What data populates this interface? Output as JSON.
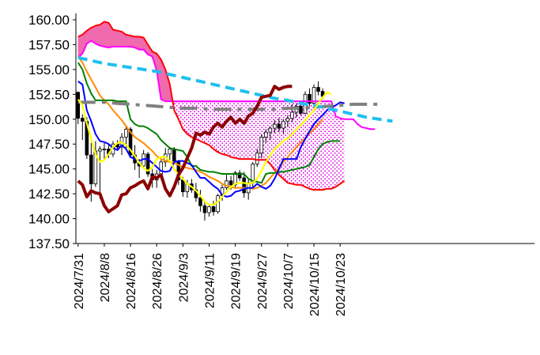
{
  "chart_data": {
    "type": "line",
    "subtype": "ichimoku-candlestick",
    "title": "",
    "xlabel": "",
    "ylabel": "",
    "ylim": [
      137.5,
      160.0
    ],
    "grid": false,
    "legend": "none",
    "y_ticks": [
      "137.50",
      "140.00",
      "142.50",
      "145.00",
      "147.50",
      "150.00",
      "152.50",
      "155.00",
      "157.50",
      "160.00"
    ],
    "x_tick_labels": [
      "2024/7/31",
      "2024/8/8",
      "2024/8/16",
      "2024/8/26",
      "2024/9/3",
      "2024/9/11",
      "2024/9/19",
      "2024/9/27",
      "2024/10/7",
      "2024/10/15",
      "2024/10/23"
    ],
    "x_tick_index": [
      0,
      6,
      12,
      18,
      24,
      30,
      36,
      42,
      48,
      54,
      60
    ],
    "n_points": 105,
    "candles": [
      [
        152.7,
        152.8,
        149.5,
        150.1
      ],
      [
        150.1,
        150.5,
        147.9,
        149.8
      ],
      [
        149.8,
        150.2,
        146.0,
        146.4
      ],
      [
        146.4,
        147.6,
        141.7,
        143.5
      ],
      [
        143.5,
        147.8,
        143.2,
        146.8
      ],
      [
        146.8,
        147.3,
        142.0,
        147.0
      ],
      [
        147.0,
        147.6,
        145.9,
        147.0
      ],
      [
        147.0,
        147.4,
        146.1,
        146.5
      ],
      [
        146.5,
        147.8,
        146.2,
        147.5
      ],
      [
        147.5,
        147.9,
        146.9,
        147.2
      ],
      [
        147.2,
        148.6,
        146.4,
        148.2
      ],
      [
        148.2,
        149.4,
        146.9,
        149.0
      ],
      [
        149.0,
        149.2,
        146.1,
        146.4
      ],
      [
        146.4,
        147.4,
        144.9,
        145.6
      ],
      [
        145.6,
        146.0,
        144.1,
        145.3
      ],
      [
        145.3,
        146.9,
        145.0,
        146.5
      ],
      [
        146.5,
        146.7,
        144.2,
        144.5
      ],
      [
        144.5,
        145.0,
        143.1,
        143.9
      ],
      [
        143.9,
        144.9,
        143.1,
        144.5
      ],
      [
        144.5,
        145.9,
        143.9,
        145.7
      ],
      [
        145.7,
        147.1,
        145.2,
        146.5
      ],
      [
        146.5,
        147.2,
        145.6,
        147.0
      ],
      [
        147.0,
        147.2,
        145.6,
        145.8
      ],
      [
        145.8,
        145.9,
        143.4,
        143.9
      ],
      [
        143.9,
        144.2,
        142.2,
        142.7
      ],
      [
        142.7,
        143.9,
        142.1,
        143.5
      ],
      [
        143.5,
        144.0,
        142.6,
        142.9
      ],
      [
        142.9,
        143.6,
        141.7,
        142.1
      ],
      [
        142.1,
        142.9,
        140.7,
        141.3
      ],
      [
        141.3,
        141.8,
        139.8,
        140.6
      ],
      [
        140.6,
        141.4,
        140.2,
        141.2
      ],
      [
        141.2,
        141.8,
        140.3,
        140.7
      ],
      [
        140.7,
        142.5,
        140.5,
        142.3
      ],
      [
        142.3,
        143.4,
        141.8,
        143.1
      ],
      [
        143.1,
        144.4,
        142.9,
        143.8
      ],
      [
        143.8,
        144.3,
        142.9,
        143.4
      ],
      [
        143.4,
        144.8,
        143.1,
        144.6
      ],
      [
        144.6,
        144.9,
        143.8,
        144.1
      ],
      [
        144.1,
        144.7,
        142.1,
        142.6
      ],
      [
        142.6,
        144.0,
        141.9,
        143.6
      ],
      [
        143.6,
        145.7,
        143.2,
        145.5
      ],
      [
        145.5,
        147.0,
        145.2,
        146.6
      ],
      [
        146.6,
        148.5,
        146.1,
        148.2
      ],
      [
        148.2,
        149.0,
        147.6,
        148.7
      ],
      [
        148.7,
        149.3,
        147.9,
        149.1
      ],
      [
        149.1,
        149.9,
        148.6,
        149.5
      ],
      [
        149.5,
        150.1,
        148.7,
        149.1
      ],
      [
        149.1,
        150.0,
        148.5,
        149.8
      ],
      [
        149.8,
        150.4,
        149.2,
        150.1
      ],
      [
        150.1,
        151.5,
        149.7,
        150.7
      ],
      [
        150.7,
        151.6,
        150.2,
        151.3
      ],
      [
        151.3,
        151.7,
        150.4,
        150.6
      ],
      [
        150.6,
        152.8,
        150.5,
        152.5
      ],
      [
        152.5,
        153.1,
        151.3,
        151.6
      ],
      [
        151.6,
        153.5,
        151.2,
        153.2
      ],
      [
        153.2,
        153.8,
        152.4,
        152.8
      ],
      [
        152.8,
        153.1,
        152.0,
        152.3
      ]
    ],
    "series": [
      {
        "role": "tenkan",
        "color": "#0000ff",
        "values": [
          153.8,
          153.5,
          150.9,
          149.8,
          148.5,
          147.8,
          147.7,
          147.5,
          147.1,
          146.9,
          147.4,
          147.0,
          146.2,
          146.0,
          145.8,
          146.0,
          146.0,
          145.6,
          145.2,
          144.8,
          144.7,
          144.8,
          145.7,
          145.8,
          145.8,
          145.6,
          145.4,
          144.7,
          144.1,
          144.1,
          143.7,
          143.3,
          143.0,
          142.4,
          142.2,
          142.3,
          142.7,
          142.8,
          143.0,
          143.1,
          143.1,
          143.5,
          143.2,
          143.0,
          143.3,
          144.0,
          145.0,
          146.0,
          146.0,
          146.0,
          146.0,
          147.2,
          148.0,
          148.8,
          149.5,
          150.0,
          150.4,
          150.9,
          151.2,
          151.4,
          151.7,
          151.6
        ]
      },
      {
        "role": "kijun",
        "color": "#008000",
        "values": [
          155.7,
          155.0,
          153.6,
          152.6,
          151.9,
          151.9,
          151.9,
          151.9,
          151.9,
          151.8,
          151.8,
          151.8,
          150.0,
          149.5,
          149.3,
          149.3,
          149.1,
          148.8,
          148.5,
          147.9,
          147.5,
          147.1,
          147.0,
          146.9,
          146.8,
          146.2,
          145.3,
          145.3,
          144.9,
          144.8,
          144.7,
          144.7,
          144.6,
          144.5,
          144.5,
          144.5,
          144.5,
          144.5,
          144.5,
          144.0,
          143.8,
          143.7,
          143.6,
          144.5,
          144.6,
          144.6,
          144.7,
          144.7,
          144.8,
          144.9,
          145.0,
          145.1,
          145.2,
          145.4,
          146.2,
          147.0,
          147.5,
          147.7,
          147.8,
          147.8,
          147.8
        ]
      },
      {
        "role": "chikou",
        "color": "#8b0000",
        "values": [
          143.8,
          143.4,
          142.2,
          142.8,
          142.6,
          142.5,
          141.3,
          140.7,
          141.0,
          141.3,
          142.4,
          142.5,
          143.1,
          143.3,
          143.6,
          143.8,
          143.0,
          144.2,
          144.1,
          144.4,
          143.0,
          142.3,
          143.2,
          144.4,
          145.1,
          146.1,
          147.1,
          148.6,
          148.4,
          148.7,
          148.5,
          149.2,
          149.6,
          149.2,
          149.8,
          150.2,
          149.6,
          150.0,
          149.6,
          150.3,
          150.6,
          151.3,
          152.2,
          152.3,
          152.4,
          153.3,
          153.0,
          153.2,
          153.3,
          153.3
        ]
      },
      {
        "role": "avg-orange",
        "color": "#ff8c00",
        "values": [
          156.3,
          155.7,
          154.8,
          154.0,
          153.2,
          152.4,
          151.9,
          151.5,
          150.9,
          150.4,
          149.9,
          149.3,
          148.7,
          148.2,
          147.9,
          147.6,
          147.2,
          146.8,
          146.3,
          146.0,
          145.8,
          145.7,
          145.6,
          145.4,
          145.2,
          145.1,
          145.0,
          144.9,
          144.7,
          144.5,
          144.2,
          144.0,
          143.8,
          143.5,
          143.3,
          143.2,
          143.1,
          143.1,
          143.1,
          143.1,
          143.0,
          143.1,
          143.3,
          143.6,
          144.1,
          144.6,
          145.1,
          145.7,
          146.2,
          146.7,
          147.2,
          147.7,
          148.1,
          148.6,
          149.0,
          149.5,
          150.0
        ]
      },
      {
        "role": "avg-yellow",
        "color": "#ffff00",
        "values": [
          152.0,
          151.4,
          149.6,
          148.0,
          146.5,
          145.7,
          145.9,
          146.5,
          147.2,
          147.6,
          147.7,
          147.4,
          146.9,
          146.3,
          145.6,
          145.1,
          144.8,
          145.2,
          146.0,
          146.2,
          146.2,
          145.8,
          145.0,
          144.4,
          144.0,
          143.5,
          143.2,
          142.8,
          142.3,
          141.7,
          141.4,
          141.4,
          141.7,
          142.2,
          142.7,
          143.2,
          143.5,
          143.6,
          143.6,
          143.5,
          143.6,
          144.0,
          144.8,
          145.7,
          146.4,
          147.0,
          147.4,
          147.8,
          148.1,
          148.5,
          149.0,
          149.4,
          149.9,
          150.4,
          150.9,
          151.6,
          152.2,
          152.7,
          152.5
        ]
      },
      {
        "role": "avg-cyan-dashed",
        "color": "#1fbfef",
        "values": [
          156.2,
          155.9,
          155.6,
          155.4,
          155.2,
          155.0,
          154.8,
          154.5,
          154.2,
          153.9,
          153.6,
          153.3,
          153.0,
          152.7,
          152.4,
          152.1,
          151.9,
          151.6,
          151.4,
          151.1,
          150.8,
          150.5,
          150.2,
          150.0,
          149.8
        ]
      },
      {
        "role": "avg-gray-dashdot",
        "color": "#808080",
        "values": [
          151.7,
          151.7,
          151.7,
          151.6,
          151.5,
          151.4,
          151.3,
          151.2,
          151.1,
          151.1,
          151.0,
          151.0,
          151.0,
          151.0,
          151.0,
          151.0,
          151.1,
          151.1,
          151.2,
          151.3,
          151.4,
          151.5,
          151.5,
          151.5
        ]
      },
      {
        "role": "senkou-a",
        "color": "#ff00ff",
        "values": [
          156.2,
          156.6,
          157.6,
          157.9,
          157.6,
          157.4,
          157.3,
          157.2,
          157.3,
          157.3,
          157.3,
          157.3,
          157.3,
          157.2,
          157.0,
          157.0,
          156.5,
          156.3,
          154.9,
          152.0,
          151.8,
          151.8,
          151.8,
          151.8,
          151.8,
          151.8,
          151.8,
          151.8,
          151.8,
          151.8,
          151.8,
          151.8,
          151.8,
          151.8,
          151.8,
          151.8,
          151.8,
          151.8,
          151.8,
          151.8,
          151.8,
          151.8,
          151.8,
          151.8,
          151.8,
          151.8,
          151.8,
          151.8,
          151.8,
          151.8,
          151.8,
          151.8,
          151.8,
          151.8,
          151.8,
          151.8,
          151.8,
          151.8,
          151.8,
          150.3,
          150.1,
          150.0,
          150.0,
          150.0,
          149.5,
          149.2,
          149.1,
          149.0,
          149.0
        ]
      },
      {
        "role": "senkou-b",
        "color": "#ff0000",
        "values": [
          158.3,
          158.5,
          158.9,
          159.2,
          159.4,
          159.5,
          159.8,
          159.7,
          159.0,
          158.9,
          158.8,
          158.5,
          158.4,
          158.3,
          158.3,
          158.2,
          157.5,
          156.8,
          156.6,
          156.0,
          155.0,
          153.5,
          150.9,
          150.0,
          149.0,
          148.5,
          148.2,
          148.0,
          147.8,
          147.6,
          147.4,
          147.0,
          146.7,
          146.5,
          146.4,
          146.2,
          146.1,
          146.0,
          146.0,
          146.0,
          146.0,
          145.9,
          145.9,
          145.9,
          145.5,
          144.9,
          144.4,
          144.0,
          143.6,
          143.5,
          143.4,
          143.4,
          143.2,
          143.0,
          142.9,
          142.9,
          142.9,
          143.0,
          143.0,
          143.2,
          143.5,
          143.8
        ]
      }
    ]
  }
}
